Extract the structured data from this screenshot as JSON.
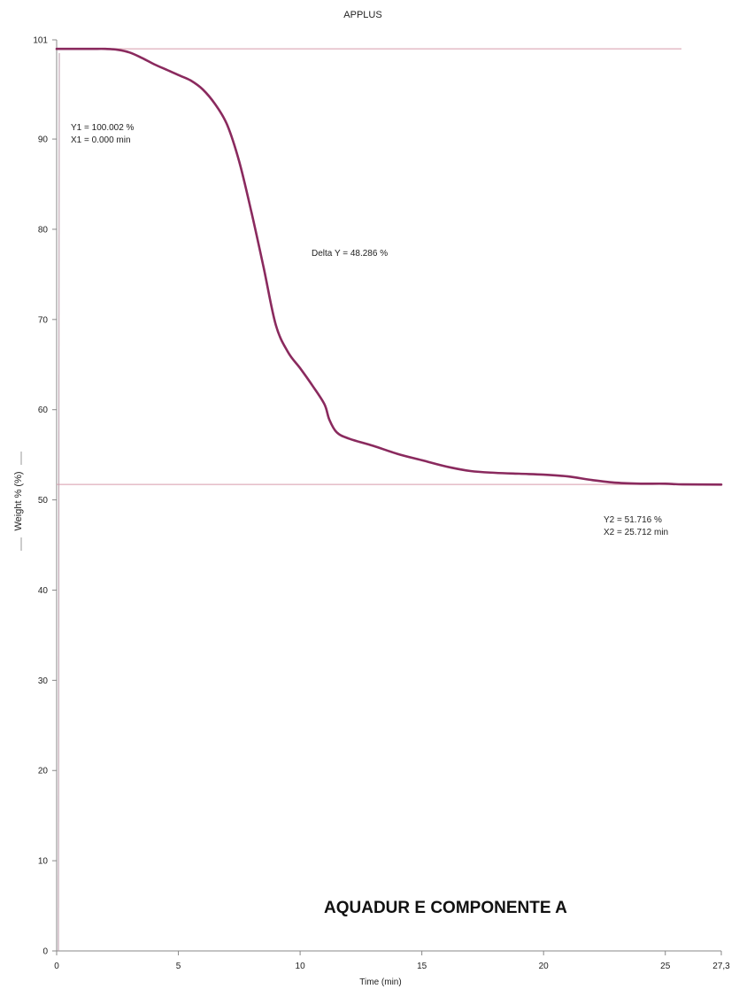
{
  "chart_data": {
    "type": "line",
    "title": "APPLUS",
    "xlabel": "Time (min)",
    "ylabel": "Weight % (%)",
    "xlim": [
      0,
      27.3
    ],
    "ylim": [
      0,
      101
    ],
    "x_ticks": [
      0,
      5,
      10,
      15,
      20,
      25,
      27.3
    ],
    "x_tick_labels": [
      "0",
      "5",
      "10",
      "15",
      "20",
      "25",
      "27,3"
    ],
    "y_ticks": [
      0,
      10,
      20,
      30,
      40,
      50,
      60,
      70,
      80,
      90,
      101
    ],
    "y_tick_labels": [
      "0",
      "10",
      "20",
      "30",
      "40",
      "50",
      "60",
      "70",
      "80",
      "90",
      "101"
    ],
    "grid": false,
    "series": [
      {
        "color": "#8a2a5e",
        "x": [
          0,
          0.5,
          1,
          1.5,
          2,
          2.5,
          3,
          3.5,
          4,
          4.5,
          5,
          5.5,
          6,
          6.5,
          7,
          7.5,
          8,
          8.5,
          9,
          9.5,
          10,
          10.5,
          11,
          11.2,
          11.5,
          12,
          13,
          14,
          15,
          16,
          17,
          18,
          19,
          20,
          21,
          22,
          23,
          24,
          25,
          25.712,
          27.3
        ],
        "y": [
          100.0,
          100.0,
          100.0,
          100.0,
          100.0,
          99.9,
          99.6,
          99.0,
          98.3,
          97.7,
          97.1,
          96.5,
          95.5,
          93.9,
          91.6,
          87.5,
          81.9,
          75.8,
          69.4,
          66.4,
          64.6,
          62.7,
          60.6,
          58.9,
          57.5,
          56.8,
          56.0,
          55.1,
          54.4,
          53.7,
          53.2,
          53.0,
          52.9,
          52.8,
          52.6,
          52.2,
          51.9,
          51.8,
          51.8,
          51.72,
          51.7
        ]
      }
    ],
    "reference_lines": [
      {
        "axis": "y",
        "value": 100.002,
        "color": "#d89aaa"
      },
      {
        "axis": "y",
        "value": 51.716,
        "color": "#d89aaa"
      }
    ],
    "annotations": [
      {
        "lines": [
          "Y1 = 100.002 %",
          "X1 = 0.000 min"
        ]
      },
      {
        "lines": [
          "Delta Y = 48.286 %"
        ]
      },
      {
        "lines": [
          "Y2 = 51.716 %",
          "X2 = 25.712 min"
        ]
      }
    ],
    "caption": "AQUADUR E COMPONENTE A"
  }
}
